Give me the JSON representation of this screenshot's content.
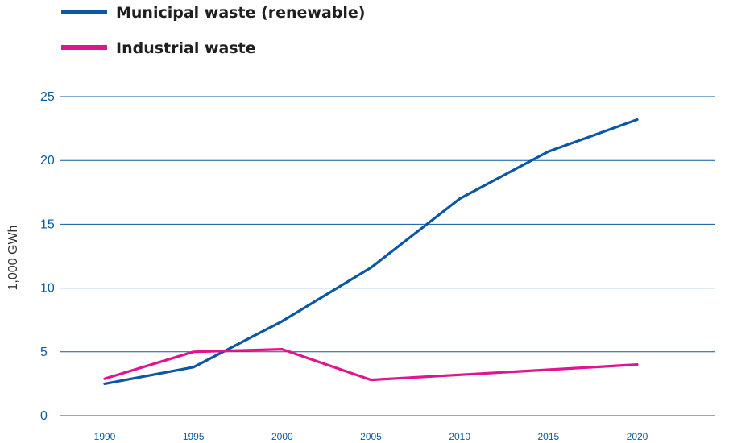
{
  "chart_data": {
    "type": "line",
    "title": "",
    "xlabel": "",
    "ylabel": "1,000 GWh",
    "x": [
      1990,
      1995,
      2000,
      2005,
      2010,
      2015,
      2020
    ],
    "xlim": [
      1990,
      2020
    ],
    "ylim": [
      0,
      25
    ],
    "yticks": [
      0,
      5,
      10,
      15,
      20,
      25
    ],
    "grid": true,
    "legend_position": "top-left",
    "series": [
      {
        "name": "Municipal waste (renewable)",
        "color": "#0a57a3",
        "values": [
          2.5,
          3.8,
          7.4,
          11.6,
          17.0,
          20.7,
          23.2
        ]
      },
      {
        "name": "Industrial waste",
        "color": "#e0148c",
        "values": [
          2.9,
          5.0,
          5.2,
          2.8,
          3.2,
          3.6,
          4.0
        ]
      }
    ]
  }
}
